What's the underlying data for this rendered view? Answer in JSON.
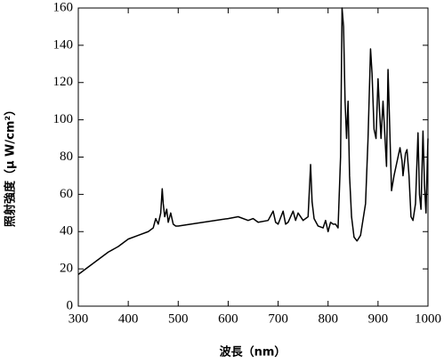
{
  "chart_data": {
    "type": "line",
    "xlabel": "波長（nm）",
    "ylabel": "照射強度（μ W/cm²）",
    "xlim": [
      300,
      1000
    ],
    "xticks": [
      300,
      400,
      500,
      600,
      700,
      800,
      900,
      1000
    ],
    "ylim": [
      0,
      160
    ],
    "yticks": [
      0,
      20,
      40,
      60,
      80,
      100,
      120,
      140,
      160
    ],
    "grid": false,
    "series": [
      {
        "color": "#000000",
        "x": [
          300,
          320,
          340,
          360,
          380,
          400,
          420,
          440,
          450,
          455,
          460,
          465,
          468,
          470,
          473,
          477,
          480,
          485,
          490,
          495,
          500,
          550,
          600,
          620,
          640,
          650,
          660,
          680,
          690,
          695,
          700,
          710,
          715,
          720,
          730,
          735,
          740,
          750,
          760,
          765,
          768,
          772,
          780,
          790,
          795,
          800,
          805,
          810,
          815,
          820,
          825,
          828,
          831,
          834,
          837,
          840,
          843,
          847,
          852,
          858,
          865,
          875,
          880,
          885,
          888,
          892,
          896,
          900,
          903,
          906,
          910,
          913,
          917,
          920,
          923,
          927,
          932,
          940,
          944,
          948,
          950,
          955,
          958,
          962,
          966,
          970,
          975,
          980,
          983,
          986,
          990,
          993,
          996,
          1000
        ],
        "values": [
          17,
          21,
          25,
          29,
          32,
          36,
          38,
          40,
          42,
          47,
          44,
          50,
          63,
          55,
          48,
          52,
          45,
          50,
          44,
          43,
          43,
          45,
          47,
          48,
          46,
          47,
          45,
          46,
          51,
          45,
          44,
          51,
          44,
          45,
          51,
          46,
          50,
          46,
          48,
          76,
          56,
          47,
          43,
          42,
          46,
          40,
          45,
          44,
          44,
          42,
          80,
          160,
          150,
          110,
          90,
          110,
          70,
          48,
          37,
          35,
          38,
          55,
          90,
          138,
          125,
          95,
          90,
          122,
          105,
          90,
          110,
          95,
          75,
          127,
          100,
          62,
          70,
          80,
          85,
          78,
          70,
          82,
          84,
          70,
          48,
          46,
          55,
          93,
          60,
          52,
          94,
          65,
          50,
          90
        ]
      }
    ]
  }
}
